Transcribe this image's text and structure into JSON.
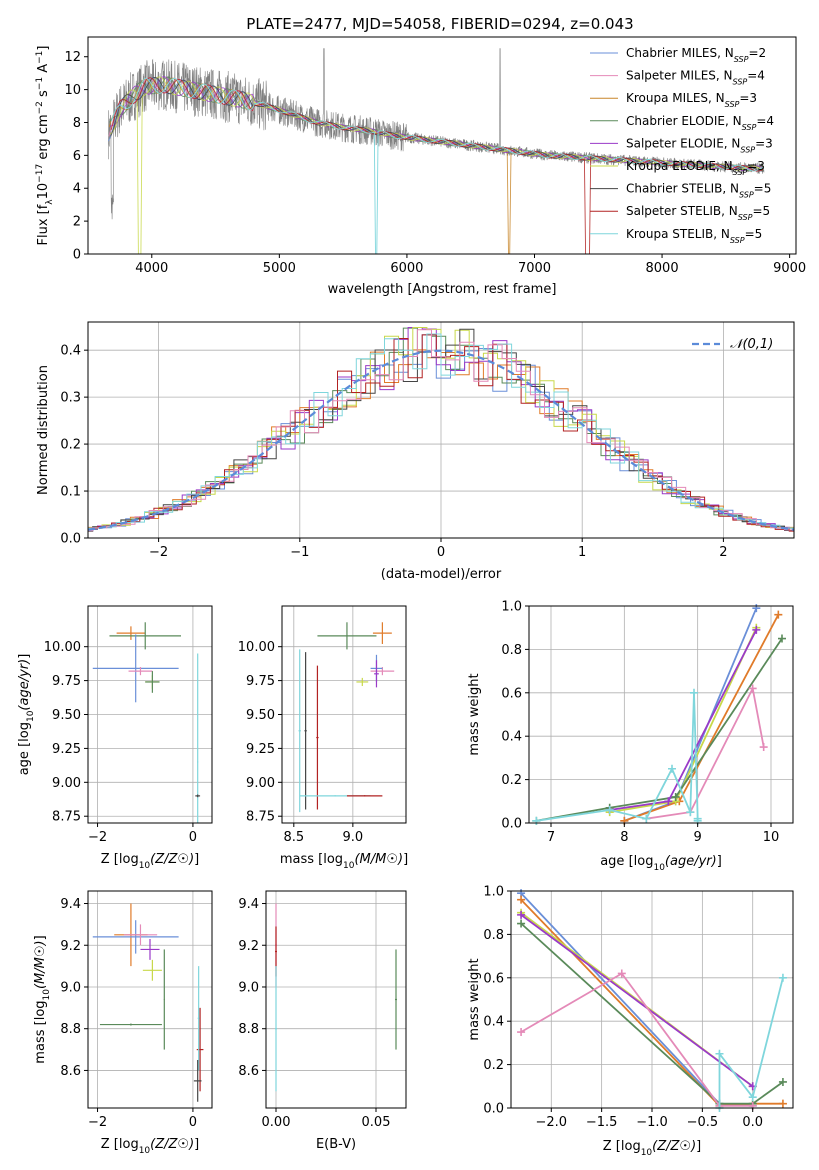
{
  "figure": {
    "title": "PLATE=2477, MJD=54058, FIBERID=0294, z=0.043"
  },
  "chart_data": [
    {
      "id": "spectrum",
      "type": "line",
      "xlabel": "wavelength [Angstrom, rest frame]",
      "ylabel": "Flux [f_λ 10^-17 erg cm^-2 s^-1 A^-1]",
      "xlim": [
        3500,
        9050
      ],
      "ylim": [
        0,
        13.2
      ],
      "xticks": [
        4000,
        5000,
        6000,
        7000,
        8000,
        9000
      ],
      "yticks": [
        0,
        2,
        4,
        6,
        8,
        10,
        12
      ],
      "grid": false,
      "legend_position": "top-right",
      "data_color": "#808080",
      "legend": [
        {
          "text": "Chabrier MILES, N",
          "sub": "SSP",
          "suffix": "=2",
          "color": "#6a8fd8"
        },
        {
          "text": "Salpeter MILES, N",
          "sub": "SSP",
          "suffix": "=4",
          "color": "#e48ab8"
        },
        {
          "text": "Kroupa MILES, N",
          "sub": "SSP",
          "suffix": "=3",
          "color": "#c8862a"
        },
        {
          "text": "Chabrier ELODIE, N",
          "sub": "SSP",
          "suffix": "=4",
          "color": "#5a8a5a"
        },
        {
          "text": "Salpeter ELODIE, N",
          "sub": "SSP",
          "suffix": "=3",
          "color": "#9a3ac8"
        },
        {
          "text": "Kroupa ELODIE, N",
          "sub": "SSP",
          "suffix": "=3",
          "color": "#c8d84a"
        },
        {
          "text": "Chabrier STELIB, N",
          "sub": "SSP",
          "suffix": "=5",
          "color": "#444444"
        },
        {
          "text": "Salpeter STELIB, N",
          "sub": "SSP",
          "suffix": "=5",
          "color": "#b22222"
        },
        {
          "text": "Kroupa STELIB, N",
          "sub": "SSP",
          "suffix": "=5",
          "color": "#7fd6dc"
        }
      ],
      "continuum": {
        "x": [
          3650,
          3750,
          3850,
          3950,
          4100,
          4300,
          4500,
          4700,
          4900,
          5100,
          5300,
          5500,
          5700,
          5900,
          6100,
          6300,
          6500,
          6700,
          6900,
          7100,
          7300,
          7500,
          7700,
          7900,
          8100,
          8300,
          8500,
          8700,
          8800
        ],
        "y": [
          7.2,
          8.8,
          9.6,
          10.2,
          10.3,
          10.0,
          9.7,
          9.4,
          9.0,
          8.5,
          8.0,
          7.7,
          7.5,
          7.2,
          7.0,
          6.8,
          6.6,
          6.4,
          6.2,
          6.0,
          5.9,
          5.8,
          5.7,
          5.6,
          5.5,
          5.4,
          5.3,
          5.2,
          5.2
        ]
      }
    },
    {
      "id": "residuals",
      "type": "histogram",
      "xlabel": "(data-model)/error",
      "ylabel": "Normed distribution",
      "xlim": [
        -2.5,
        2.5
      ],
      "ylim": [
        0,
        0.46
      ],
      "xticks": [
        -2,
        -1,
        0,
        1,
        2
      ],
      "yticks": [
        0.0,
        0.1,
        0.2,
        0.3,
        0.4
      ],
      "grid": true,
      "legend_position": "top-right",
      "gaussian_label": "𝒩(0,1)",
      "gaussian_color": "#5b8bd9"
    },
    {
      "id": "age-vs-Z",
      "type": "errorbar",
      "xlabel": "Z [log10(Z/Z☉)]",
      "ylabel": "age [log10(age/yr)]",
      "xlim": [
        -2.2,
        0.4
      ],
      "ylim": [
        8.7,
        10.3
      ],
      "xticks": [
        -2,
        0
      ],
      "yticks": [
        8.75,
        9.0,
        9.25,
        9.5,
        9.75,
        10.0
      ],
      "grid": true,
      "points": [
        {
          "x": -1.3,
          "y": 10.1,
          "xerr": 0.3,
          "yerr": 0.05,
          "color": "#e07b2a"
        },
        {
          "x": -1.0,
          "y": 10.08,
          "xerr": 0.75,
          "yerr": 0.1,
          "color": "#5a8a5a"
        },
        {
          "x": -1.2,
          "y": 9.84,
          "xerr": 0.9,
          "yerr": 0.25,
          "color": "#6a8fd8"
        },
        {
          "x": -1.1,
          "y": 9.82,
          "xerr": 0.25,
          "yerr": 0.03,
          "color": "#e48ab8"
        },
        {
          "x": -0.85,
          "y": 9.74,
          "xerr": 0.15,
          "yerr": 0.05,
          "color": "#c8d84a"
        },
        {
          "x": -0.85,
          "y": 9.74,
          "xerr": 0.15,
          "yerr": 0.08,
          "color": "#5a8a5a"
        },
        {
          "x": 0.1,
          "y": 9.15,
          "xerr": 0.01,
          "yerr": 0.8,
          "color": "#7fd6dc"
        },
        {
          "x": 0.1,
          "y": 8.9,
          "xerr": 0.05,
          "yerr": 0.01,
          "color": "#444444"
        }
      ]
    },
    {
      "id": "age-vs-mass",
      "type": "errorbar",
      "xlabel": "mass [log10(M/M☉)]",
      "ylabel": "",
      "xlim": [
        8.4,
        9.45
      ],
      "ylim": [
        8.7,
        10.3
      ],
      "xticks": [
        8.5,
        9.0
      ],
      "yticks": [
        8.75,
        9.0,
        9.25,
        9.5,
        9.75,
        10.0
      ],
      "grid": true,
      "points": [
        {
          "x": 8.95,
          "y": 10.08,
          "xerr": 0.25,
          "yerr": 0.1,
          "color": "#5a8a5a"
        },
        {
          "x": 9.25,
          "y": 10.1,
          "xerr": 0.08,
          "yerr": 0.08,
          "color": "#e07b2a"
        },
        {
          "x": 9.25,
          "y": 9.82,
          "xerr": 0.1,
          "yerr": 0.03,
          "color": "#e48ab8"
        },
        {
          "x": 9.2,
          "y": 9.84,
          "xerr": 0.05,
          "yerr": 0.1,
          "color": "#6a8fd8"
        },
        {
          "x": 9.2,
          "y": 9.8,
          "xerr": 0.02,
          "yerr": 0.1,
          "color": "#9a3ac8"
        },
        {
          "x": 9.08,
          "y": 9.74,
          "xerr": 0.05,
          "yerr": 0.03,
          "color": "#c8d84a"
        },
        {
          "x": 8.55,
          "y": 9.38,
          "xerr": 0.01,
          "yerr": 0.6,
          "color": "#7fd6dc"
        },
        {
          "x": 8.6,
          "y": 9.38,
          "xerr": 0.01,
          "yerr": 0.58,
          "color": "#444444"
        },
        {
          "x": 8.7,
          "y": 9.33,
          "xerr": 0.01,
          "yerr": 0.53,
          "color": "#b22222"
        },
        {
          "x": 8.85,
          "y": 8.9,
          "xerr": 0.3,
          "yerr": 0.005,
          "color": "#7fd6dc"
        },
        {
          "x": 9.1,
          "y": 8.9,
          "xerr": 0.15,
          "yerr": 0.005,
          "color": "#b22222"
        }
      ]
    },
    {
      "id": "weight-vs-age",
      "type": "line",
      "xlabel": "age [log10(age/yr)]",
      "ylabel": "mass weight",
      "xlim": [
        6.7,
        10.3
      ],
      "ylim": [
        0,
        1.0
      ],
      "xticks": [
        7,
        8,
        9,
        10
      ],
      "yticks": [
        0.0,
        0.2,
        0.4,
        0.6,
        0.8,
        1.0
      ],
      "grid": true,
      "series": [
        {
          "color": "#6a8fd8",
          "x": [
            8.0,
            8.7,
            9.8
          ],
          "y": [
            0.01,
            0.1,
            0.99
          ]
        },
        {
          "color": "#e07b2a",
          "x": [
            8.0,
            8.75,
            10.1
          ],
          "y": [
            0.01,
            0.1,
            0.96
          ]
        },
        {
          "color": "#c8d84a",
          "x": [
            7.8,
            8.7,
            9.8
          ],
          "y": [
            0.05,
            0.1,
            0.9
          ]
        },
        {
          "color": "#5a8a5a",
          "x": [
            6.8,
            7.8,
            8.7,
            10.15
          ],
          "y": [
            0.01,
            0.07,
            0.12,
            0.85
          ]
        },
        {
          "color": "#9a3ac8",
          "x": [
            7.8,
            8.6,
            9.8
          ],
          "y": [
            0.06,
            0.1,
            0.89
          ]
        },
        {
          "color": "#e48ab8",
          "x": [
            8.3,
            8.9,
            9.75,
            9.9
          ],
          "y": [
            0.02,
            0.05,
            0.62,
            0.35
          ]
        },
        {
          "color": "#7fd6dc",
          "x": [
            6.8,
            7.8,
            8.3,
            8.65,
            8.9,
            8.95,
            9.0,
            9.0
          ],
          "y": [
            0.01,
            0.06,
            0.02,
            0.25,
            0.05,
            0.6,
            0.02,
            0.01
          ]
        }
      ]
    },
    {
      "id": "mass-vs-Z",
      "type": "errorbar",
      "xlabel": "Z [log10(Z/Z☉)]",
      "ylabel": "mass [log10(M/M☉)]",
      "xlim": [
        -2.2,
        0.4
      ],
      "ylim": [
        8.42,
        9.46
      ],
      "xticks": [
        -2,
        0
      ],
      "yticks": [
        8.6,
        8.8,
        9.0,
        9.2,
        9.4
      ],
      "grid": true,
      "points": [
        {
          "x": -1.3,
          "y": 9.25,
          "xerr": 0.35,
          "yerr": 0.15,
          "color": "#e07b2a"
        },
        {
          "x": -1.2,
          "y": 9.24,
          "xerr": 0.9,
          "yerr": 0.08,
          "color": "#6a8fd8"
        },
        {
          "x": -1.1,
          "y": 9.25,
          "xerr": 0.35,
          "yerr": 0.05,
          "color": "#e48ab8"
        },
        {
          "x": -0.9,
          "y": 9.18,
          "xerr": 0.2,
          "yerr": 0.05,
          "color": "#9a3ac8"
        },
        {
          "x": -0.85,
          "y": 9.08,
          "xerr": 0.2,
          "yerr": 0.05,
          "color": "#c8d84a"
        },
        {
          "x": -1.3,
          "y": 8.82,
          "xerr": 0.65,
          "yerr": 0.005,
          "color": "#5a8a5a"
        },
        {
          "x": -0.6,
          "y": 8.94,
          "xerr": 0.01,
          "yerr": 0.24,
          "color": "#5a8a5a"
        },
        {
          "x": 0.15,
          "y": 8.7,
          "xerr": 0.07,
          "yerr": 0.2,
          "color": "#b22222"
        },
        {
          "x": 0.12,
          "y": 8.85,
          "xerr": 0.02,
          "yerr": 0.25,
          "color": "#7fd6dc"
        },
        {
          "x": 0.1,
          "y": 8.55,
          "xerr": 0.08,
          "yerr": 0.1,
          "color": "#444444"
        }
      ]
    },
    {
      "id": "mass-vs-EBV",
      "type": "errorbar",
      "xlabel": "E(B-V)",
      "ylabel": "",
      "xlim": [
        -0.005,
        0.065
      ],
      "ylim": [
        8.42,
        9.46
      ],
      "xticks": [
        0.0,
        0.05
      ],
      "yticks": [
        8.6,
        8.8,
        9.0,
        9.2,
        9.4
      ],
      "grid": true,
      "points": [
        {
          "x": 0.0,
          "y": 9.2,
          "xerr": 0.0005,
          "yerr": 0.2,
          "color": "#e48ab8"
        },
        {
          "x": 0.0,
          "y": 9.17,
          "xerr": 0.0005,
          "yerr": 0.12,
          "color": "#b22222"
        },
        {
          "x": 0.0,
          "y": 8.8,
          "xerr": 0.0005,
          "yerr": 0.3,
          "color": "#7fd6dc"
        },
        {
          "x": 0.06,
          "y": 8.94,
          "xerr": 0.0005,
          "yerr": 0.24,
          "color": "#5a8a5a"
        }
      ]
    },
    {
      "id": "weight-vs-Z",
      "type": "line",
      "xlabel": "Z [log10(Z/Z☉)]",
      "ylabel": "mass weight",
      "xlim": [
        -2.4,
        0.4
      ],
      "ylim": [
        0,
        1.0
      ],
      "xticks": [
        -2.0,
        -1.5,
        -1.0,
        -0.5,
        0.0
      ],
      "yticks": [
        0.0,
        0.2,
        0.4,
        0.6,
        0.8,
        1.0
      ],
      "grid": true,
      "series": [
        {
          "color": "#6a8fd8",
          "x": [
            -2.3,
            -0.33,
            0.0
          ],
          "y": [
            0.99,
            0.02,
            0.01
          ]
        },
        {
          "color": "#e07b2a",
          "x": [
            -2.3,
            -0.33,
            0.0,
            0.3
          ],
          "y": [
            0.96,
            0.01,
            0.02,
            0.02
          ]
        },
        {
          "color": "#c8d84a",
          "x": [
            -2.3,
            0.0
          ],
          "y": [
            0.9,
            0.1
          ]
        },
        {
          "color": "#9a3ac8",
          "x": [
            -2.3,
            0.0
          ],
          "y": [
            0.89,
            0.1
          ]
        },
        {
          "color": "#5a8a5a",
          "x": [
            -2.3,
            -0.33,
            0.0,
            0.3
          ],
          "y": [
            0.85,
            0.02,
            0.02,
            0.12
          ]
        },
        {
          "color": "#e48ab8",
          "x": [
            -2.3,
            -1.3,
            -0.33,
            0.0
          ],
          "y": [
            0.35,
            0.62,
            0.01,
            0.01
          ]
        },
        {
          "color": "#7fd6dc",
          "x": [
            -0.33,
            -0.33,
            0.0,
            0.3
          ],
          "y": [
            0.0,
            0.25,
            0.05,
            0.6
          ]
        }
      ]
    }
  ]
}
